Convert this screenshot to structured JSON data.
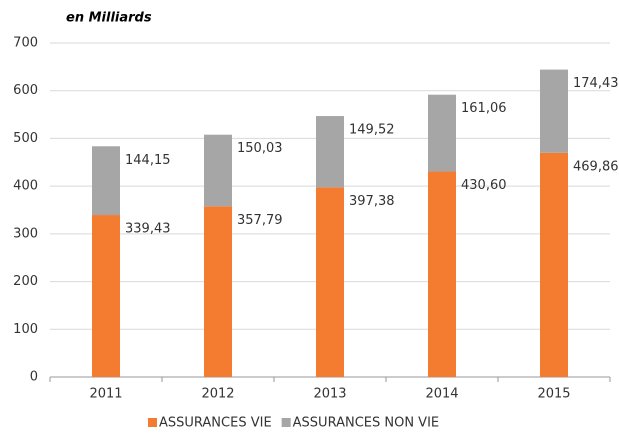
{
  "chart_data": {
    "type": "stacked_bar",
    "title": "en Milliards",
    "categories": [
      "2011",
      "2012",
      "2013",
      "2014",
      "2015"
    ],
    "series": [
      {
        "name": "ASSURANCES VIE",
        "color": "#f47c30",
        "values": [
          339.43,
          357.79,
          397.38,
          430.6,
          469.86
        ],
        "value_labels": [
          "339,43",
          "357,79",
          "397,38",
          "430,60",
          "469,86"
        ]
      },
      {
        "name": "ASSURANCES NON VIE",
        "color": "#a6a6a6",
        "values": [
          144.15,
          150.03,
          149.52,
          161.06,
          174.43
        ],
        "value_labels": [
          "144,15",
          "150,03",
          "149,52",
          "161,06",
          "174,43"
        ]
      }
    ],
    "ylim": [
      0,
      700
    ],
    "yticks": [
      0,
      100,
      200,
      300,
      400,
      500,
      600,
      700
    ],
    "grid": true,
    "legend": "bottom"
  }
}
